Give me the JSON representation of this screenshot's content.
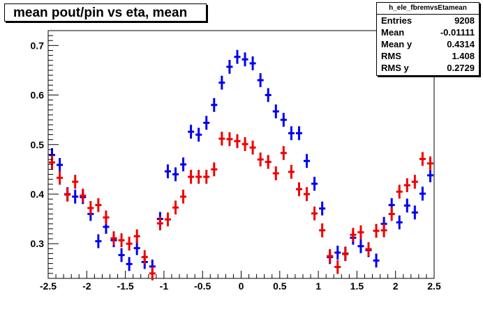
{
  "title": "mean pout/pin vs eta, mean",
  "stats": {
    "name": "h_ele_fbremvsEtamean",
    "rows": [
      {
        "label": "Entries",
        "value": "9208"
      },
      {
        "label": "Mean",
        "value": "-0.01111"
      },
      {
        "label": "Mean y",
        "value": "0.4314"
      },
      {
        "label": "RMS",
        "value": "1.408"
      },
      {
        "label": "RMS y",
        "value": "0.2729"
      }
    ]
  },
  "chart_data": {
    "type": "scatter",
    "title": "mean pout/pin vs eta, mean",
    "xlabel": "",
    "ylabel": "",
    "xlim": [
      -2.5,
      2.5
    ],
    "ylim": [
      0.23,
      0.73
    ],
    "x_ticks": [
      "-2.5",
      "-2",
      "-1.5",
      "-1",
      "-0.5",
      "0",
      "0.5",
      "1",
      "1.5",
      "2",
      "2.5"
    ],
    "y_ticks": [
      "0.3",
      "0.4",
      "0.5",
      "0.6",
      "0.7"
    ],
    "colors": {
      "series_blue": "#0000ee",
      "series_red": "#ee0000"
    },
    "x": [
      -2.45,
      -2.35,
      -2.25,
      -2.15,
      -2.05,
      -1.95,
      -1.85,
      -1.75,
      -1.65,
      -1.55,
      -1.45,
      -1.35,
      -1.25,
      -1.15,
      -1.05,
      -0.95,
      -0.85,
      -0.75,
      -0.65,
      -0.55,
      -0.45,
      -0.35,
      -0.25,
      -0.15,
      -0.05,
      0.05,
      0.15,
      0.25,
      0.35,
      0.45,
      0.55,
      0.65,
      0.75,
      0.85,
      0.95,
      1.05,
      1.15,
      1.25,
      1.35,
      1.45,
      1.55,
      1.65,
      1.75,
      1.85,
      1.95,
      2.05,
      2.15,
      2.25,
      2.35,
      2.45
    ],
    "series": [
      {
        "values": [
          0.479,
          0.459,
          0.4,
          0.395,
          0.394,
          0.36,
          0.305,
          0.334,
          0.307,
          0.277,
          0.259,
          0.291,
          0.263,
          0.254,
          0.35,
          0.446,
          0.44,
          0.46,
          0.526,
          0.52,
          0.544,
          0.58,
          0.625,
          0.657,
          0.677,
          0.672,
          0.664,
          0.63,
          0.6,
          0.567,
          0.55,
          0.523,
          0.523,
          0.467,
          0.421,
          0.371,
          0.273,
          0.282,
          0.28,
          0.312,
          0.295,
          0.287,
          0.266,
          0.34,
          0.378,
          0.343,
          0.377,
          0.363,
          0.401,
          0.438
        ]
      },
      {
        "values": [
          0.464,
          0.433,
          0.399,
          0.425,
          0.397,
          0.372,
          0.378,
          0.353,
          0.311,
          0.307,
          0.3,
          0.315,
          0.273,
          0.24,
          0.341,
          0.349,
          0.373,
          0.395,
          0.435,
          0.435,
          0.435,
          0.45,
          0.512,
          0.511,
          0.507,
          0.501,
          0.494,
          0.47,
          0.465,
          0.442,
          0.483,
          0.445,
          0.41,
          0.4,
          0.361,
          0.327,
          0.275,
          0.253,
          0.279,
          0.318,
          0.323,
          0.289,
          0.326,
          0.327,
          0.36,
          0.405,
          0.418,
          0.425,
          0.471,
          0.462
        ]
      }
    ]
  }
}
